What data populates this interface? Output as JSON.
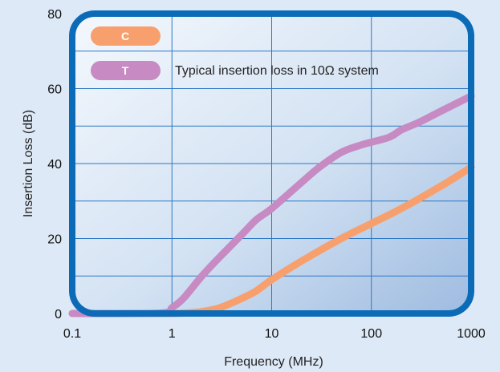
{
  "chart_data": {
    "type": "line",
    "xscale": "log",
    "xlim": [
      0.1,
      1000
    ],
    "ylim": [
      0,
      80
    ],
    "x_ticks": [
      "0.1",
      "1",
      "10",
      "100",
      "1000"
    ],
    "y_ticks": [
      "0",
      "20",
      "40",
      "60",
      "80"
    ],
    "xlabel": "Frequency (MHz)",
    "ylabel": "Insertion Loss (dB)",
    "annotation": "Typical insertion loss in 10Ω system",
    "grid": true,
    "legend_position": "top-left",
    "series": [
      {
        "name": "C",
        "color": "#f7a06e",
        "x": [
          0.1,
          0.5,
          1,
          1.5,
          2,
          3,
          5,
          7,
          10,
          20,
          50,
          100,
          200,
          500,
          1000
        ],
        "y": [
          0,
          0,
          0,
          0.2,
          0.5,
          1.5,
          4,
          6,
          9,
          14,
          20,
          24,
          28,
          34,
          39
        ]
      },
      {
        "name": "T",
        "color": "#c78ac3",
        "x": [
          0.1,
          0.5,
          0.9,
          1,
          1.3,
          2,
          3,
          5,
          7,
          10,
          20,
          30,
          50,
          80,
          150,
          200,
          300,
          500,
          1000
        ],
        "y": [
          0,
          0,
          0.3,
          1.5,
          4,
          10,
          15,
          21,
          25,
          28,
          35,
          39,
          43,
          45,
          47,
          49,
          51,
          54,
          58
        ]
      }
    ]
  }
}
